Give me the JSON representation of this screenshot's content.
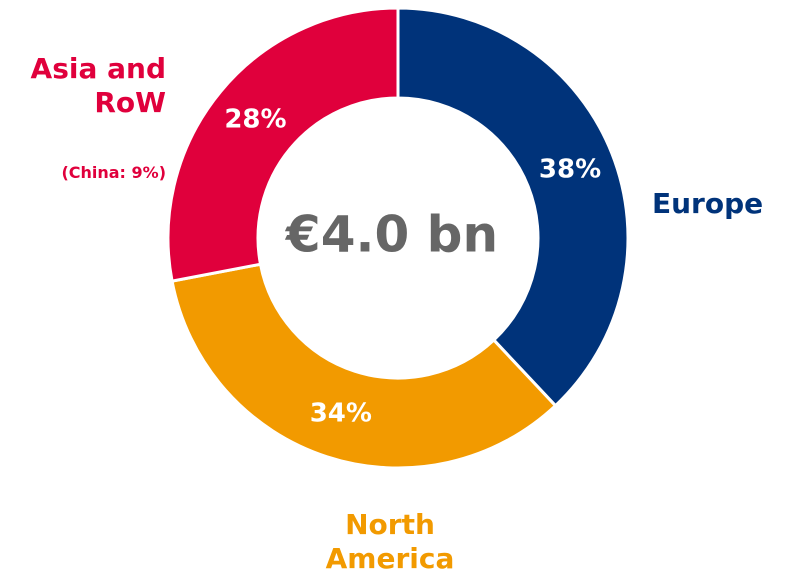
{
  "chart_data": {
    "type": "donut",
    "categories": [
      "Europe",
      "North America",
      "Asia and RoW"
    ],
    "values": [
      38,
      34,
      28
    ],
    "value_labels": [
      "38%",
      "34%",
      "28%"
    ],
    "colors": [
      "#00337a",
      "#f29a00",
      "#e0003c"
    ],
    "center_label": "€4.0 bn",
    "annotation": "(China: 9%)"
  }
}
